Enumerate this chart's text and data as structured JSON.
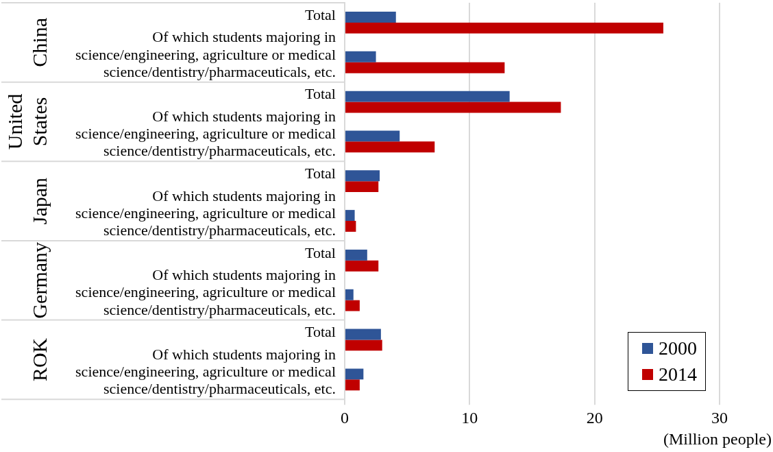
{
  "chart_data": {
    "type": "bar",
    "orientation": "horizontal",
    "categories": [
      "Total",
      "Of which students majoring in science/engineering, agriculture or medical science/dentistry/pharmaceuticals, etc.",
      "Total",
      "Of which students majoring in science/engineering, agriculture or medical science/dentistry/pharmaceuticals, etc.",
      "Total",
      "Of which students majoring in science/engineering, agriculture or medical science/dentistry/pharmaceuticals, etc.",
      "Total",
      "Of which students majoring in science/engineering, agriculture or medical science/dentistry/pharmaceuticals, etc.",
      "Total",
      "Of which students majoring in science/engineering, agriculture or medical science/dentistry/pharmaceuticals, etc."
    ],
    "series": [
      {
        "name": "2000",
        "color": "#2f5597",
        "values": [
          4.1,
          2.5,
          13.2,
          4.4,
          2.8,
          0.8,
          1.8,
          0.7,
          2.9,
          1.5
        ]
      },
      {
        "name": "2014",
        "color": "#c00000",
        "values": [
          25.5,
          12.8,
          17.3,
          7.2,
          2.7,
          0.9,
          2.7,
          1.2,
          3.0,
          1.2
        ]
      }
    ],
    "xlabel": "(Million people)",
    "xlim": [
      0,
      30
    ],
    "xticks": [
      0,
      10,
      20,
      30
    ],
    "grid": "x",
    "legend": "bottom right",
    "annotations": [
      "China",
      "United States",
      "Japan",
      "Germany",
      "ROK"
    ]
  }
}
